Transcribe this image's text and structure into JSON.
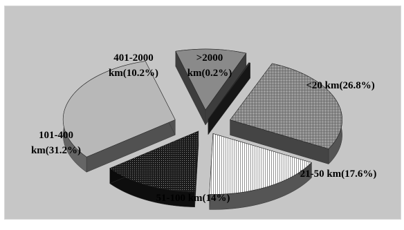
{
  "chart_data": {
    "type": "pie",
    "style": "3d-exploded",
    "categories": [
      "<20 km",
      "21-50 km",
      "51-100 km",
      "101-400 km",
      "401-2000 km",
      ">2000 km"
    ],
    "values": [
      26.8,
      17.6,
      14,
      31.2,
      10.2,
      0.2
    ],
    "labels": [
      [
        "<20 km(26.8%)"
      ],
      [
        "21-50 km(17.6%)"
      ],
      [
        "51-100 km(14%)"
      ],
      [
        "101-400",
        "km(31.2%)"
      ],
      [
        "401-2000",
        "km(10.2%)"
      ],
      [
        ">2000",
        "km(0.2%)"
      ]
    ],
    "colors": [
      "#9a9a9a",
      "#ffffff",
      "#1a1a1a",
      "#b8b8b8",
      "#8a8a8a",
      "#333333"
    ],
    "patterns": [
      "crosshatch",
      "hatch",
      "dots",
      "solid",
      "solid",
      "solid"
    ],
    "background": "#c6c6c6",
    "legend": "none"
  }
}
